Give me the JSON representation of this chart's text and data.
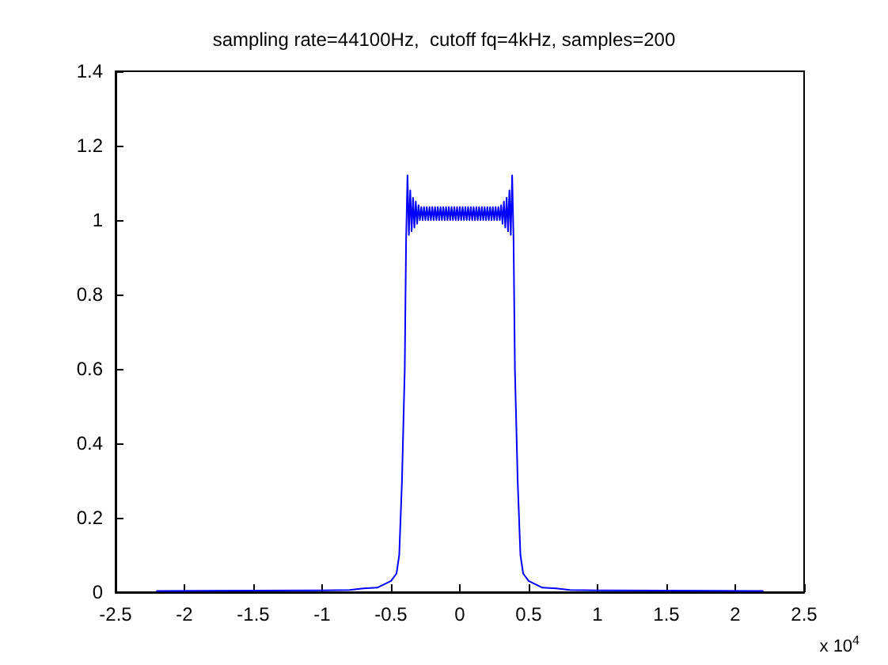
{
  "chart_data": {
    "type": "line",
    "title": "sampling rate=44100Hz,  cutoff fq=4kHz, samples=200",
    "annotations": [
      "x 10$^{4}$"
    ],
    "xlim": [
      -2.5,
      2.5
    ],
    "xticks": [
      -2.5,
      -2,
      -1.5,
      -1,
      -0.5,
      0,
      0.5,
      1,
      1.5,
      2,
      2.5
    ],
    "ylim": [
      0,
      1.4
    ],
    "yticks": [
      0,
      0.2,
      0.4,
      0.6,
      0.8,
      1,
      1.2,
      1.4
    ],
    "grid": false,
    "marker": "none",
    "line_style": "solid",
    "series": [
      {
        "color": "#0000ff",
        "x": [
          -2.2,
          -1.5,
          -1,
          -0.8,
          -0.7,
          -0.6,
          -0.5,
          -0.46,
          -0.44,
          -0.42,
          -0.4,
          -0.39,
          -0.38,
          -0.37,
          -0.36,
          -0.35,
          -0.34,
          -0.33,
          -0.32,
          -0.31,
          -0.3,
          -0.29,
          -0.28,
          -0.27,
          -0.26,
          -0.25,
          -0.24,
          -0.23,
          -0.22,
          -0.21,
          -0.2,
          -0.19,
          -0.18,
          -0.17,
          -0.16,
          -0.15,
          -0.14,
          -0.13,
          -0.12,
          -0.11,
          -0.1,
          -0.09,
          -0.08,
          -0.07,
          -0.06,
          -0.05,
          -0.04,
          -0.03,
          -0.02,
          -0.01,
          0,
          0.01,
          0.02,
          0.03,
          0.04,
          0.05,
          0.06,
          0.07,
          0.08,
          0.09,
          0.1,
          0.11,
          0.12,
          0.13,
          0.14,
          0.15,
          0.16,
          0.17,
          0.18,
          0.19,
          0.2,
          0.21,
          0.22,
          0.23,
          0.24,
          0.25,
          0.26,
          0.27,
          0.28,
          0.29,
          0.3,
          0.31,
          0.32,
          0.33,
          0.34,
          0.35,
          0.36,
          0.37,
          0.38,
          0.39,
          0.4,
          0.42,
          0.44,
          0.46,
          0.5,
          0.6,
          0.7,
          0.8,
          1,
          1.5,
          2.2
        ],
        "values": [
          0.003,
          0.004,
          0.005,
          0.006,
          0.01,
          0.012,
          0.03,
          0.05,
          0.1,
          0.3,
          0.6,
          0.95,
          1.12,
          0.96,
          1.08,
          0.97,
          1.06,
          0.98,
          1.05,
          0.99,
          1.04,
          1.0,
          1.035,
          1.0,
          1.035,
          1.0,
          1.035,
          1.0,
          1.035,
          1.0,
          1.035,
          1.0,
          1.035,
          1.0,
          1.035,
          1.0,
          1.035,
          1.0,
          1.035,
          1.0,
          1.035,
          1.0,
          1.035,
          1.0,
          1.035,
          1.0,
          1.035,
          1.0,
          1.035,
          1.0,
          1.035,
          1.0,
          1.035,
          1.0,
          1.035,
          1.0,
          1.035,
          1.0,
          1.035,
          1.0,
          1.035,
          1.0,
          1.035,
          1.0,
          1.035,
          1.0,
          1.035,
          1.0,
          1.035,
          1.0,
          1.035,
          1.0,
          1.035,
          1.0,
          1.035,
          1.0,
          1.035,
          1.0,
          1.035,
          1.0,
          1.04,
          0.99,
          1.05,
          0.98,
          1.06,
          0.97,
          1.08,
          0.96,
          1.12,
          0.95,
          0.6,
          0.3,
          0.1,
          0.05,
          0.03,
          0.012,
          0.01,
          0.006,
          0.005,
          0.004,
          0.003
        ]
      }
    ]
  }
}
